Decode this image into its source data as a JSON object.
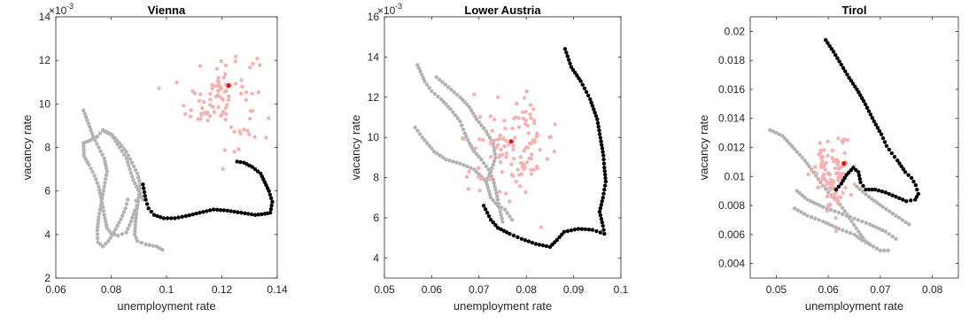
{
  "chart_data": [
    {
      "type": "scatter",
      "title": "Vienna",
      "xlabel": "unemployment rate",
      "ylabel": "vacancy rate",
      "xlim": [
        0.06,
        0.14
      ],
      "ylim": [
        2,
        14
      ],
      "xticks": [
        "0.06",
        "0.08",
        "0.1",
        "0.12",
        "0.14"
      ],
      "yticks": [
        "2",
        "4",
        "6",
        "8",
        "10",
        "12",
        "14"
      ],
      "y_exponent": "-3",
      "grid": false,
      "colors": {
        "gray": "#b3b3b3",
        "pink": "#f7b1b1",
        "black": "#000000",
        "red": "#e8100f"
      },
      "series": [
        {
          "color": "gray",
          "style": "path",
          "points": [
            [
              0.0915,
              5.6
            ],
            [
              0.088,
              6.5
            ],
            [
              0.0855,
              7.5
            ],
            [
              0.083,
              8.0
            ],
            [
              0.08,
              8.6
            ],
            [
              0.077,
              8.8
            ],
            [
              0.075,
              8.5
            ],
            [
              0.072,
              8.3
            ],
            [
              0.07,
              8.2
            ],
            [
              0.0702,
              7.6
            ],
            [
              0.072,
              7.2
            ],
            [
              0.074,
              6.7
            ],
            [
              0.0755,
              6.2
            ],
            [
              0.0765,
              5.6
            ],
            [
              0.0775,
              4.9
            ],
            [
              0.0785,
              4.3
            ],
            [
              0.08,
              4.05
            ],
            [
              0.0825,
              3.95
            ],
            [
              0.0855,
              4.1
            ],
            [
              0.0872,
              4.6
            ],
            [
              0.0885,
              5.1
            ],
            [
              0.0893,
              5.3
            ],
            [
              0.089,
              5.55
            ]
          ]
        },
        {
          "color": "gray",
          "style": "path",
          "points": [
            [
              0.07,
              9.7
            ],
            [
              0.0718,
              9.1
            ],
            [
              0.0735,
              8.5
            ],
            [
              0.0755,
              8.0
            ],
            [
              0.0775,
              7.5
            ],
            [
              0.0785,
              6.9
            ],
            [
              0.0775,
              6.2
            ],
            [
              0.0765,
              5.5
            ],
            [
              0.0755,
              4.8
            ],
            [
              0.075,
              4.2
            ],
            [
              0.0752,
              3.65
            ],
            [
              0.077,
              3.45
            ],
            [
              0.079,
              3.7
            ],
            [
              0.081,
              4.1
            ],
            [
              0.0835,
              4.7
            ],
            [
              0.0852,
              5.2
            ],
            [
              0.086,
              5.6
            ]
          ]
        },
        {
          "color": "gray",
          "style": "path",
          "points": [
            [
              0.0775,
              8.75
            ],
            [
              0.0805,
              8.55
            ],
            [
              0.083,
              8.2
            ],
            [
              0.0855,
              7.8
            ],
            [
              0.0875,
              7.3
            ],
            [
              0.0895,
              6.8
            ],
            [
              0.0905,
              6.3
            ],
            [
              0.09,
              5.7
            ],
            [
              0.0893,
              5.2
            ],
            [
              0.0888,
              4.6
            ],
            [
              0.0885,
              4.0
            ],
            [
              0.0895,
              3.7
            ],
            [
              0.0925,
              3.55
            ],
            [
              0.0965,
              3.45
            ],
            [
              0.0985,
              3.3
            ]
          ]
        },
        {
          "color": "pink",
          "style": "cloud",
          "center": [
            0.12,
            10.3
          ],
          "spread": [
            0.0065,
            1.15
          ],
          "count": 95
        },
        {
          "color": "black",
          "style": "path",
          "points": [
            [
              0.0915,
              6.3
            ],
            [
              0.0925,
              5.6
            ],
            [
              0.0935,
              5.2
            ],
            [
              0.0955,
              4.9
            ],
            [
              0.099,
              4.75
            ],
            [
              0.103,
              4.75
            ],
            [
              0.107,
              4.85
            ],
            [
              0.112,
              5.0
            ],
            [
              0.117,
              5.15
            ],
            [
              0.122,
              5.1
            ],
            [
              0.127,
              5.0
            ],
            [
              0.132,
              4.9
            ],
            [
              0.1355,
              4.95
            ],
            [
              0.1375,
              5.0
            ],
            [
              0.1382,
              5.5
            ],
            [
              0.137,
              6.0
            ],
            [
              0.1355,
              6.4
            ],
            [
              0.134,
              6.8
            ],
            [
              0.131,
              7.1
            ],
            [
              0.128,
              7.3
            ],
            [
              0.1255,
              7.35
            ]
          ]
        },
        {
          "color": "red",
          "style": "point",
          "points": [
            [
              0.1225,
              10.85
            ]
          ]
        }
      ]
    },
    {
      "type": "scatter",
      "title": "Lower Austria",
      "xlabel": "unemployment rate",
      "ylabel": "vacancy rate",
      "xlim": [
        0.05,
        0.1
      ],
      "ylim": [
        3,
        16
      ],
      "xticks": [
        "0.05",
        "0.06",
        "0.07",
        "0.08",
        "0.09",
        "0.1"
      ],
      "yticks": [
        "4",
        "6",
        "8",
        "10",
        "12",
        "14",
        "16"
      ],
      "y_exponent": "-3",
      "grid": false,
      "colors": {
        "gray": "#b3b3b3",
        "pink": "#f7b1b1",
        "black": "#000000",
        "red": "#e8100f"
      },
      "series": [
        {
          "color": "gray",
          "style": "path",
          "points": [
            [
              0.057,
              13.6
            ],
            [
              0.0585,
              12.8
            ],
            [
              0.06,
              12.3
            ],
            [
              0.062,
              11.9
            ],
            [
              0.064,
              11.4
            ],
            [
              0.066,
              10.8
            ],
            [
              0.067,
              10.2
            ],
            [
              0.068,
              9.7
            ],
            [
              0.069,
              9.3
            ],
            [
              0.0705,
              8.9
            ],
            [
              0.072,
              8.4
            ],
            [
              0.073,
              7.9
            ],
            [
              0.0735,
              7.4
            ],
            [
              0.074,
              6.9
            ],
            [
              0.0745,
              6.3
            ],
            [
              0.075,
              5.8
            ]
          ]
        },
        {
          "color": "gray",
          "style": "path",
          "points": [
            [
              0.0565,
              10.5
            ],
            [
              0.058,
              10.0
            ],
            [
              0.0605,
              9.3
            ],
            [
              0.063,
              8.9
            ],
            [
              0.066,
              8.7
            ],
            [
              0.069,
              8.4
            ],
            [
              0.0715,
              7.8
            ],
            [
              0.0725,
              7.0
            ],
            [
              0.074,
              6.6
            ],
            [
              0.0755,
              6.4
            ],
            [
              0.077,
              5.9
            ]
          ]
        },
        {
          "color": "gray",
          "style": "path",
          "points": [
            [
              0.061,
              13.0
            ],
            [
              0.0635,
              12.5
            ],
            [
              0.066,
              12.0
            ],
            [
              0.068,
              11.5
            ],
            [
              0.0695,
              10.9
            ],
            [
              0.0715,
              10.3
            ],
            [
              0.073,
              9.7
            ],
            [
              0.0735,
              9.0
            ],
            [
              0.0725,
              8.3
            ],
            [
              0.0715,
              7.8
            ]
          ]
        },
        {
          "color": "pink",
          "style": "cloud",
          "center": [
            0.0775,
            9.6
          ],
          "spread": [
            0.0045,
            1.15
          ],
          "count": 115
        },
        {
          "color": "black",
          "style": "path",
          "points": [
            [
              0.0882,
              14.4
            ],
            [
              0.0895,
              13.5
            ],
            [
              0.0915,
              12.8
            ],
            [
              0.0935,
              11.9
            ],
            [
              0.095,
              10.9
            ],
            [
              0.0958,
              9.8
            ],
            [
              0.0963,
              9.1
            ],
            [
              0.0965,
              8.5
            ],
            [
              0.0968,
              7.8
            ],
            [
              0.0962,
              7.0
            ],
            [
              0.0955,
              6.3
            ],
            [
              0.0962,
              5.6
            ],
            [
              0.0965,
              5.2
            ],
            [
              0.094,
              5.4
            ],
            [
              0.091,
              5.45
            ],
            [
              0.088,
              5.3
            ],
            [
              0.0865,
              4.9
            ],
            [
              0.085,
              4.55
            ],
            [
              0.082,
              4.7
            ],
            [
              0.079,
              4.95
            ],
            [
              0.0765,
              5.2
            ],
            [
              0.074,
              5.5
            ],
            [
              0.0725,
              5.9
            ],
            [
              0.071,
              6.6
            ]
          ]
        },
        {
          "color": "red",
          "style": "point",
          "points": [
            [
              0.0768,
              9.8
            ]
          ]
        }
      ]
    },
    {
      "type": "scatter",
      "title": "Tirol",
      "xlabel": "unemployment rate",
      "ylabel": "vacancy rate",
      "xlim": [
        0.045,
        0.085
      ],
      "ylim": [
        0.003,
        0.021
      ],
      "xticks": [
        "0.05",
        "0.06",
        "0.07",
        "0.08"
      ],
      "yticks": [
        "0.004",
        "0.006",
        "0.008",
        "0.01",
        "0.012",
        "0.014",
        "0.016",
        "0.018",
        "0.02"
      ],
      "y_exponent": "",
      "grid": false,
      "colors": {
        "gray": "#b3b3b3",
        "pink": "#f7b1b1",
        "black": "#000000",
        "red": "#e8100f"
      },
      "series": [
        {
          "color": "gray",
          "style": "path",
          "points": [
            [
              0.0488,
              0.0132
            ],
            [
              0.0512,
              0.0128
            ],
            [
              0.0535,
              0.0119
            ],
            [
              0.0555,
              0.0111
            ],
            [
              0.0572,
              0.0103
            ],
            [
              0.0585,
              0.0096
            ],
            [
              0.06,
              0.0089
            ],
            [
              0.0618,
              0.0083
            ],
            [
              0.0632,
              0.0076
            ],
            [
              0.0645,
              0.0069
            ],
            [
              0.0658,
              0.0062
            ],
            [
              0.067,
              0.0056
            ],
            [
              0.068,
              0.0053
            ]
          ]
        },
        {
          "color": "gray",
          "style": "path",
          "points": [
            [
              0.054,
              0.009
            ],
            [
              0.056,
              0.0084
            ],
            [
              0.059,
              0.0079
            ],
            [
              0.062,
              0.0075
            ],
            [
              0.065,
              0.0071
            ],
            [
              0.068,
              0.0067
            ],
            [
              0.071,
              0.0062
            ],
            [
              0.073,
              0.0057
            ]
          ]
        },
        {
          "color": "gray",
          "style": "path",
          "points": [
            [
              0.0535,
              0.0078
            ],
            [
              0.056,
              0.0073
            ],
            [
              0.059,
              0.0069
            ],
            [
              0.062,
              0.0064
            ],
            [
              0.065,
              0.006
            ],
            [
              0.0665,
              0.0056
            ],
            [
              0.068,
              0.0053
            ],
            [
              0.07,
              0.0049
            ],
            [
              0.0715,
              0.0049
            ]
          ]
        },
        {
          "color": "gray",
          "style": "path",
          "points": [
            [
              0.0655,
              0.0093
            ],
            [
              0.0678,
              0.0086
            ],
            [
              0.0705,
              0.0079
            ],
            [
              0.073,
              0.0073
            ],
            [
              0.0755,
              0.0067
            ]
          ]
        },
        {
          "color": "pink",
          "style": "cloud",
          "center": [
            0.061,
            0.0101
          ],
          "spread": [
            0.0018,
            0.0012
          ],
          "count": 110
        },
        {
          "color": "black",
          "style": "path",
          "points": [
            [
              0.0595,
              0.0194
            ],
            [
              0.061,
              0.0186
            ],
            [
              0.0625,
              0.0177
            ],
            [
              0.064,
              0.0168
            ],
            [
              0.0655,
              0.016
            ],
            [
              0.0668,
              0.0152
            ],
            [
              0.0678,
              0.0145
            ],
            [
              0.0688,
              0.0138
            ],
            [
              0.0702,
              0.0129
            ],
            [
              0.0712,
              0.0121
            ],
            [
              0.0722,
              0.0116
            ],
            [
              0.0733,
              0.0111
            ],
            [
              0.0748,
              0.0103
            ],
            [
              0.076,
              0.0099
            ],
            [
              0.0768,
              0.0094
            ],
            [
              0.0773,
              0.0088
            ],
            [
              0.0767,
              0.0084
            ],
            [
              0.075,
              0.0083
            ],
            [
              0.073,
              0.0086
            ],
            [
              0.071,
              0.0089
            ],
            [
              0.069,
              0.0091
            ],
            [
              0.0672,
              0.0091
            ],
            [
              0.0662,
              0.0096
            ],
            [
              0.0658,
              0.0103
            ],
            [
              0.0648,
              0.0106
            ],
            [
              0.0635,
              0.0101
            ],
            [
              0.0625,
              0.0095
            ],
            [
              0.0615,
              0.0091
            ]
          ]
        },
        {
          "color": "red",
          "style": "point",
          "points": [
            [
              0.063,
              0.0109
            ]
          ]
        }
      ]
    }
  ]
}
